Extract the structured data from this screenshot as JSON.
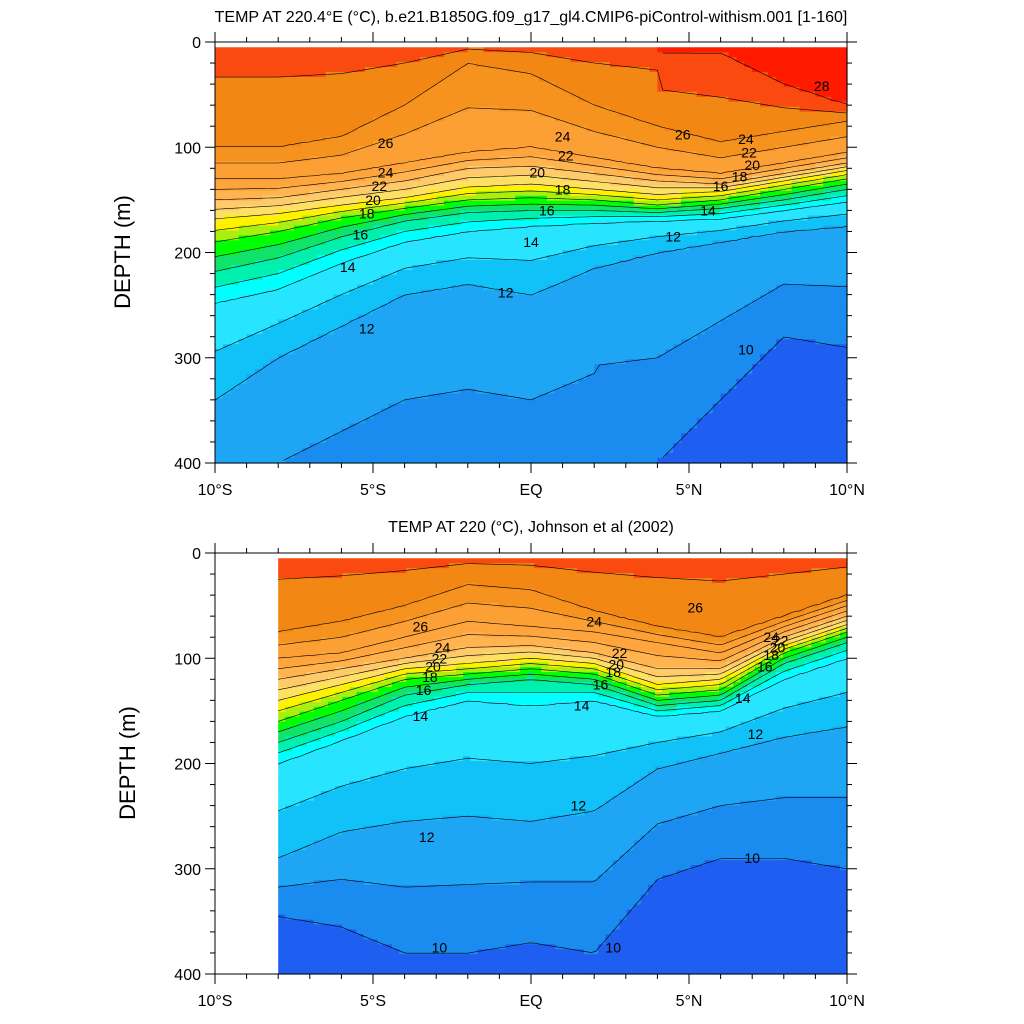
{
  "chart_data": [
    {
      "type": "contour",
      "title": "TEMP AT 220.4°E (°C), b.e21.B1850G.f09_g17_gl4.CMIP6-piControl-withism.001 [1-160]",
      "ylabel": "DEPTH (m)",
      "xlim": [
        -10,
        10
      ],
      "ylim": [
        400,
        0
      ],
      "y_inverted": true,
      "x_ticks": [
        -10,
        -5,
        0,
        5,
        10
      ],
      "x_tick_labels": [
        "10°S",
        "5°S",
        "EQ",
        "5°N",
        "10°N"
      ],
      "y_ticks": [
        0,
        100,
        200,
        300,
        400
      ],
      "y_tick_labels": [
        "0",
        "100",
        "200",
        "300",
        "400"
      ],
      "data_extent_x": [
        -10,
        10
      ],
      "data_extent_depth": [
        5,
        400
      ],
      "x": [
        -10,
        -8,
        -6,
        -4,
        -2,
        0,
        2,
        4,
        6,
        8,
        10
      ],
      "isotherm_depths": {
        "28": [
          null,
          null,
          null,
          null,
          null,
          null,
          null,
          null,
          10,
          40,
          60
        ],
        "26": [
          100,
          100,
          90,
          60,
          20,
          30,
          60,
          80,
          95,
          85,
          75
        ],
        "24": [
          130,
          130,
          125,
          115,
          105,
          100,
          110,
          120,
          125,
          115,
          105
        ],
        "22": [
          150,
          148,
          140,
          132,
          120,
          118,
          125,
          132,
          135,
          125,
          115
        ],
        "20": [
          168,
          163,
          155,
          148,
          138,
          135,
          140,
          145,
          142,
          132,
          122
        ],
        "18": [
          190,
          180,
          167,
          158,
          150,
          148,
          150,
          155,
          150,
          140,
          130
        ],
        "16": [
          218,
          205,
          185,
          170,
          162,
          160,
          160,
          162,
          158,
          150,
          140
        ],
        "14": [
          248,
          235,
          210,
          190,
          180,
          175,
          172,
          170,
          168,
          160,
          152
        ],
        "12": [
          340,
          300,
          270,
          240,
          230,
          240,
          215,
          200,
          190,
          180,
          175
        ],
        "10": [
          null,
          null,
          null,
          null,
          null,
          null,
          null,
          400,
          340,
          280,
          290
        ]
      },
      "contour_labels": [
        {
          "text": "28",
          "x": 9.2,
          "depth": 42
        },
        {
          "text": "26",
          "x": -4.6,
          "depth": 96
        },
        {
          "text": "26",
          "x": 4.8,
          "depth": 88
        },
        {
          "text": "24",
          "x": -4.6,
          "depth": 124
        },
        {
          "text": "24",
          "x": 1.0,
          "depth": 90
        },
        {
          "text": "24",
          "x": 6.8,
          "depth": 92
        },
        {
          "text": "22",
          "x": -4.8,
          "depth": 137
        },
        {
          "text": "22",
          "x": 1.1,
          "depth": 108
        },
        {
          "text": "22",
          "x": 6.9,
          "depth": 105
        },
        {
          "text": "20",
          "x": -5.0,
          "depth": 150
        },
        {
          "text": "20",
          "x": 0.2,
          "depth": 124
        },
        {
          "text": "20",
          "x": 7.0,
          "depth": 117
        },
        {
          "text": "18",
          "x": -5.2,
          "depth": 163
        },
        {
          "text": "18",
          "x": 1.0,
          "depth": 140
        },
        {
          "text": "18",
          "x": 6.6,
          "depth": 128
        },
        {
          "text": "16",
          "x": -5.4,
          "depth": 183
        },
        {
          "text": "16",
          "x": 0.5,
          "depth": 160
        },
        {
          "text": "16",
          "x": 6.0,
          "depth": 137
        },
        {
          "text": "14",
          "x": -5.8,
          "depth": 214
        },
        {
          "text": "14",
          "x": 0.0,
          "depth": 190
        },
        {
          "text": "14",
          "x": 5.6,
          "depth": 160
        },
        {
          "text": "12",
          "x": -5.2,
          "depth": 272
        },
        {
          "text": "12",
          "x": -0.8,
          "depth": 238
        },
        {
          "text": "12",
          "x": 4.5,
          "depth": 185
        },
        {
          "text": "10",
          "x": 6.8,
          "depth": 292
        }
      ]
    },
    {
      "type": "contour",
      "title": "TEMP AT 220 (°C), Johnson et al (2002)",
      "ylabel": "DEPTH (m)",
      "xlim": [
        -10,
        10
      ],
      "ylim": [
        400,
        0
      ],
      "y_inverted": true,
      "x_ticks": [
        -10,
        -5,
        0,
        5,
        10
      ],
      "x_tick_labels": [
        "10°S",
        "5°S",
        "EQ",
        "5°N",
        "10°N"
      ],
      "y_ticks": [
        0,
        100,
        200,
        300,
        400
      ],
      "y_tick_labels": [
        "0",
        "100",
        "200",
        "300",
        "400"
      ],
      "data_extent_x": [
        -8,
        10
      ],
      "data_extent_depth": [
        5,
        400
      ],
      "x": [
        -8,
        -6,
        -4,
        -2,
        0,
        2,
        4,
        6,
        8,
        10
      ],
      "isotherm_depths": {
        "28": [
          null,
          null,
          null,
          null,
          null,
          null,
          null,
          null,
          null,
          null
        ],
        "26": [
          75,
          65,
          50,
          30,
          35,
          55,
          70,
          80,
          60,
          40
        ],
        "24": [
          100,
          95,
          80,
          65,
          70,
          75,
          85,
          95,
          70,
          50
        ],
        "22": [
          120,
          110,
          100,
          90,
          88,
          95,
          110,
          110,
          80,
          60
        ],
        "20": [
          140,
          125,
          110,
          105,
          100,
          105,
          125,
          120,
          88,
          68
        ],
        "18": [
          160,
          140,
          120,
          115,
          110,
          115,
          135,
          130,
          95,
          75
        ],
        "16": [
          180,
          160,
          135,
          125,
          120,
          125,
          145,
          140,
          105,
          85
        ],
        "14": [
          200,
          178,
          155,
          140,
          145,
          140,
          155,
          150,
          120,
          100
        ],
        "12": [
          290,
          265,
          255,
          250,
          255,
          245,
          205,
          190,
          175,
          165
        ],
        "10": [
          345,
          355,
          380,
          380,
          370,
          380,
          310,
          290,
          290,
          300
        ]
      },
      "contour_labels": [
        {
          "text": "26",
          "x": -3.5,
          "depth": 70
        },
        {
          "text": "26",
          "x": 5.2,
          "depth": 52
        },
        {
          "text": "24",
          "x": -2.8,
          "depth": 90
        },
        {
          "text": "24",
          "x": 2.0,
          "depth": 65
        },
        {
          "text": "24",
          "x": 7.6,
          "depth": 80
        },
        {
          "text": "22",
          "x": -2.9,
          "depth": 100
        },
        {
          "text": "22",
          "x": 2.8,
          "depth": 95
        },
        {
          "text": "22",
          "x": 7.9,
          "depth": 83
        },
        {
          "text": "20",
          "x": -3.1,
          "depth": 108
        },
        {
          "text": "20",
          "x": 2.7,
          "depth": 106
        },
        {
          "text": "20",
          "x": 7.8,
          "depth": 90
        },
        {
          "text": "18",
          "x": -3.2,
          "depth": 118
        },
        {
          "text": "18",
          "x": 2.6,
          "depth": 113
        },
        {
          "text": "18",
          "x": 7.6,
          "depth": 97
        },
        {
          "text": "16",
          "x": -3.4,
          "depth": 130
        },
        {
          "text": "16",
          "x": 2.2,
          "depth": 125
        },
        {
          "text": "16",
          "x": 7.4,
          "depth": 108
        },
        {
          "text": "14",
          "x": -3.5,
          "depth": 155
        },
        {
          "text": "14",
          "x": 1.6,
          "depth": 145
        },
        {
          "text": "14",
          "x": 6.7,
          "depth": 138
        },
        {
          "text": "12",
          "x": 1.5,
          "depth": 240
        },
        {
          "text": "12",
          "x": -3.3,
          "depth": 270
        },
        {
          "text": "12",
          "x": 7.1,
          "depth": 172
        },
        {
          "text": "10",
          "x": 7.0,
          "depth": 290
        },
        {
          "text": "10",
          "x": -2.9,
          "depth": 375
        },
        {
          "text": "10",
          "x": 2.6,
          "depth": 375
        }
      ]
    }
  ],
  "colors": {
    "levels": [
      {
        "min": -100,
        "max": 10,
        "color": "#1e5ef0"
      },
      {
        "min": 10,
        "max": 11,
        "color": "#1a8cf0"
      },
      {
        "min": 11,
        "max": 12,
        "color": "#1ea6f5"
      },
      {
        "min": 12,
        "max": 13,
        "color": "#10c2f8"
      },
      {
        "min": 13,
        "max": 14,
        "color": "#27e4ff"
      },
      {
        "min": 14,
        "max": 15,
        "color": "#00ffff"
      },
      {
        "min": 15,
        "max": 16,
        "color": "#00f0b0"
      },
      {
        "min": 16,
        "max": 17,
        "color": "#10e26a"
      },
      {
        "min": 17,
        "max": 18,
        "color": "#00ff00"
      },
      {
        "min": 18,
        "max": 19,
        "color": "#a8f010"
      },
      {
        "min": 19,
        "max": 20,
        "color": "#fff200"
      },
      {
        "min": 20,
        "max": 21,
        "color": "#ffe066"
      },
      {
        "min": 21,
        "max": 22,
        "color": "#ffca6a"
      },
      {
        "min": 22,
        "max": 23,
        "color": "#ffb450"
      },
      {
        "min": 23,
        "max": 24,
        "color": "#ffa53d"
      },
      {
        "min": 24,
        "max": 25,
        "color": "#fca035"
      },
      {
        "min": 25,
        "max": 26,
        "color": "#f6921e"
      },
      {
        "min": 26,
        "max": 27,
        "color": "#f28714"
      },
      {
        "min": 27,
        "max": 28,
        "color": "#fa4a10"
      },
      {
        "min": 28,
        "max": 100,
        "color": "#ff1a00"
      }
    ],
    "contour_line": "#000000",
    "axis": "#000000"
  }
}
